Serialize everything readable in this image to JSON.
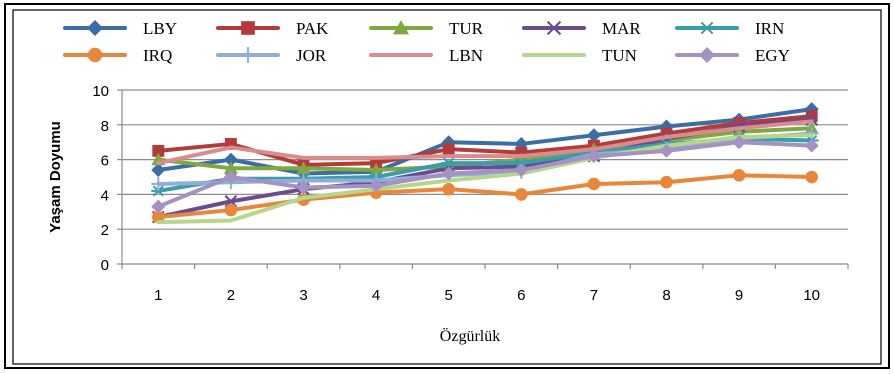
{
  "chart_data": {
    "type": "line",
    "title": "",
    "xlabel": "Özgürlük",
    "ylabel": "Yaşam Doyumu",
    "x": [
      "1",
      "2",
      "3",
      "4",
      "5",
      "6",
      "7",
      "8",
      "9",
      "10"
    ],
    "ylim": [
      0,
      10
    ],
    "yticks": [
      "0",
      "2",
      "4",
      "6",
      "8",
      "10"
    ],
    "grid": true,
    "legend_position": "top",
    "series": [
      {
        "name": "LBY",
        "color": "#3B6EA5",
        "marker": "diamond",
        "values": [
          5.4,
          6.0,
          5.2,
          5.3,
          7.0,
          6.9,
          7.4,
          7.9,
          8.3,
          8.9
        ]
      },
      {
        "name": "PAK",
        "color": "#B33B3B",
        "marker": "square",
        "values": [
          6.5,
          6.9,
          5.7,
          5.8,
          6.6,
          6.4,
          6.8,
          7.5,
          8.1,
          8.5
        ]
      },
      {
        "name": "TUR",
        "color": "#7FA840",
        "marker": "triangle",
        "values": [
          6.0,
          5.5,
          5.5,
          5.4,
          5.6,
          6.0,
          6.6,
          7.1,
          7.6,
          7.8
        ]
      },
      {
        "name": "MAR",
        "color": "#6A4C93",
        "marker": "x",
        "values": [
          2.7,
          3.6,
          4.3,
          4.7,
          5.5,
          5.6,
          6.2,
          7.2,
          7.9,
          8.3
        ]
      },
      {
        "name": "IRN",
        "color": "#3A9DAA",
        "marker": "asterisk",
        "values": [
          4.2,
          4.9,
          4.9,
          5.0,
          5.8,
          5.8,
          6.4,
          6.9,
          7.2,
          7.1
        ]
      },
      {
        "name": "IRQ",
        "color": "#E8873A",
        "marker": "circle",
        "values": [
          2.7,
          3.1,
          3.7,
          4.1,
          4.3,
          4.0,
          4.6,
          4.7,
          5.1,
          5.0
        ]
      },
      {
        "name": "JOR",
        "color": "#8FAFD8",
        "marker": "plus",
        "values": [
          4.6,
          4.7,
          4.8,
          4.8,
          5.1,
          5.3,
          6.3,
          6.6,
          7.2,
          7.5
        ]
      },
      {
        "name": "LBN",
        "color": "#D98C8C",
        "marker": "none",
        "values": [
          5.8,
          6.7,
          6.1,
          6.1,
          6.2,
          6.2,
          6.6,
          7.3,
          7.8,
          8.2
        ]
      },
      {
        "name": "TUN",
        "color": "#B6D68C",
        "marker": "none",
        "values": [
          2.4,
          2.5,
          3.8,
          4.3,
          4.8,
          5.2,
          6.1,
          6.8,
          7.3,
          7.4
        ]
      },
      {
        "name": "EGY",
        "color": "#A591C2",
        "marker": "diamond",
        "values": [
          3.3,
          5.0,
          4.4,
          4.5,
          5.2,
          5.4,
          6.2,
          6.5,
          7.0,
          6.8
        ]
      }
    ]
  }
}
